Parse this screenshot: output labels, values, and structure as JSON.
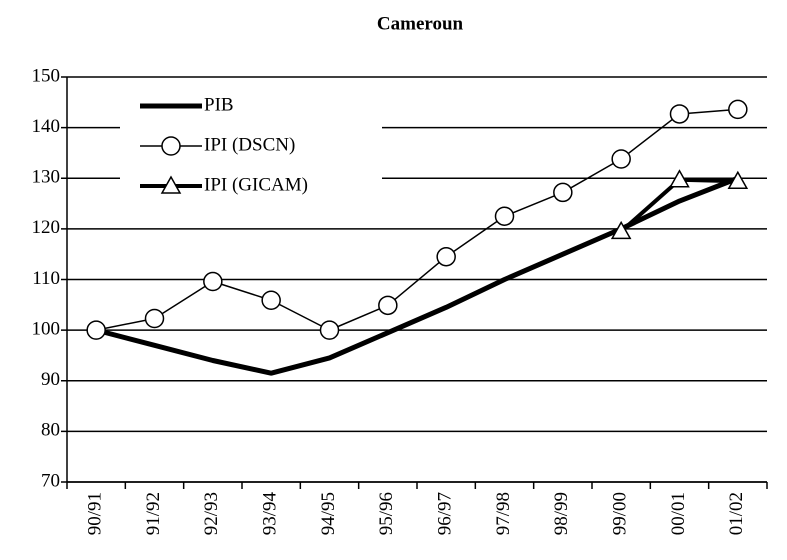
{
  "chart_data": {
    "type": "line",
    "title": "Cameroun",
    "categories": [
      "90/91",
      "91/92",
      "92/93",
      "93/94",
      "94/95",
      "95/96",
      "96/97",
      "97/98",
      "98/99",
      "99/00",
      "00/01",
      "01/02"
    ],
    "series": [
      {
        "name": "PIB",
        "color": "#000000",
        "marker": "none",
        "values": [
          100,
          97,
          94,
          91.5,
          94.5,
          99.5,
          104.5,
          110,
          115,
          120,
          125.5,
          130
        ]
      },
      {
        "name": "IPI (DSCN)",
        "color": "#000000",
        "marker": "circle",
        "values": [
          100,
          102.3,
          109.6,
          105.9,
          100,
          104.9,
          114.5,
          122.5,
          127.2,
          133.8,
          142.7,
          143.6
        ]
      },
      {
        "name": "IPI (GICAM)",
        "color": "#000000",
        "marker": "triangle",
        "values": [
          null,
          null,
          null,
          null,
          null,
          null,
          null,
          null,
          null,
          119.5,
          129.7,
          129.4
        ]
      }
    ],
    "ylim": [
      70,
      150
    ],
    "yticks": [
      70,
      80,
      90,
      100,
      110,
      120,
      130,
      140,
      150
    ],
    "grid": true,
    "legend": "upper-left"
  }
}
